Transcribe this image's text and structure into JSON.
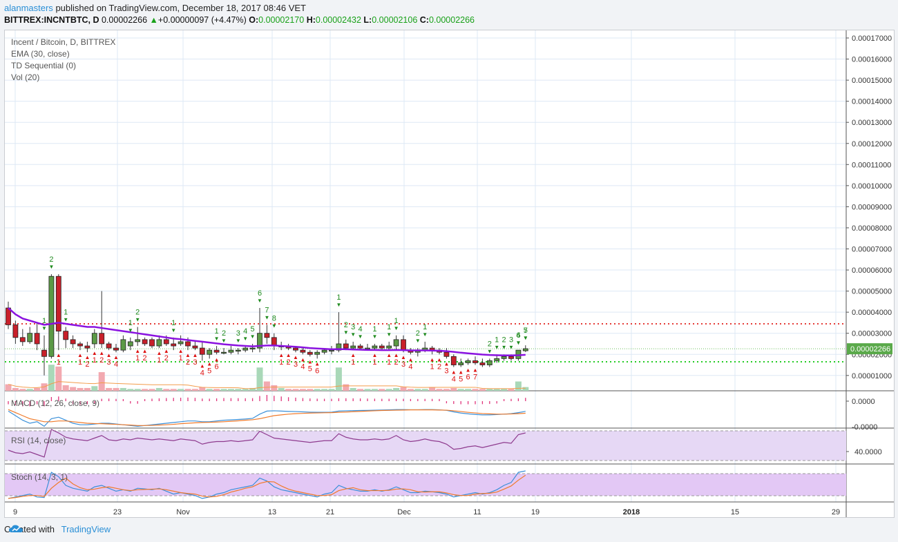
{
  "header": {
    "user": "alanmasters",
    "published": "published on TradingView.com, December 18, 2017 08:46 VET",
    "symbol": "BITTREX:INCNTBTC, D",
    "price": "0.00002266",
    "change": "+0.00000097 (+4.47%)",
    "o_label": "O:",
    "o": "0.00002170",
    "h_label": "H:",
    "h": "0.00002432",
    "l_label": "L:",
    "l": "0.00002106",
    "c_label": "C:",
    "c": "0.00002266"
  },
  "legend": {
    "title": "Incent / Bitcoin, D, BITTREX",
    "ema": "EMA (30, close)",
    "td": "TD Sequential (0)",
    "vol": "Vol (20)",
    "macd": "MACD (12, 26, close, 9)",
    "rsi": "RSI (14, close)",
    "stoch": "Stoch (14, 3, 1)"
  },
  "footer": {
    "created": "Created with",
    "brand": "TradingView"
  },
  "colors": {
    "up": "#3d7a2f",
    "down": "#c8202a",
    "ema": "#8a12e0",
    "green_line": "#22cc22",
    "red_line": "#e53935",
    "vol_up": "#a9d8b8",
    "vol_down": "#f2a9b0",
    "accent": "#2a8fd6"
  },
  "chart_data": [
    {
      "type": "candlestick",
      "title": "Incent / Bitcoin, D, BITTREX",
      "ylim": [
        0,
        0.00017
      ],
      "y_ticks": [
        "0.00017000",
        "0.00016000",
        "0.00015000",
        "0.00014000",
        "0.00013000",
        "0.00012000",
        "0.00011000",
        "0.00010000",
        "0.00009000",
        "0.00008000",
        "0.00007000",
        "0.00006000",
        "0.00005000",
        "0.00004000",
        "0.00003000",
        "0.00002000",
        "0.00001000"
      ],
      "x_ticks": [
        "9",
        "23",
        "Nov",
        "13",
        "21",
        "Dec",
        "11",
        "19",
        "2018",
        "15",
        "29"
      ],
      "last_price_label": "0.00002266",
      "resistance_green": 1.65e-05,
      "resistance_red": 3.45e-05,
      "support_green_dotted": 2.266e-05,
      "candles": [
        [
          4.2,
          4.5,
          3.2,
          3.4
        ],
        [
          3.4,
          3.6,
          2.5,
          2.8
        ],
        [
          2.8,
          3.2,
          2.4,
          2.6
        ],
        [
          2.6,
          3.3,
          2.5,
          3.0
        ],
        [
          3.0,
          3.5,
          2.2,
          2.5
        ],
        [
          2.2,
          2.9,
          1.0,
          1.9
        ],
        [
          1.9,
          5.8,
          1.8,
          5.7
        ],
        [
          5.7,
          5.8,
          2.2,
          3.1
        ],
        [
          3.1,
          3.3,
          2.3,
          2.7
        ],
        [
          2.7,
          2.9,
          2.3,
          2.5
        ],
        [
          2.5,
          2.6,
          2.2,
          2.4
        ],
        [
          2.4,
          2.6,
          2.1,
          2.3
        ],
        [
          2.5,
          3.2,
          2.3,
          3.0
        ],
        [
          3.0,
          5.0,
          2.3,
          2.5
        ],
        [
          2.5,
          2.6,
          2.2,
          2.3
        ],
        [
          2.3,
          2.5,
          2.1,
          2.2
        ],
        [
          2.2,
          2.9,
          2.1,
          2.7
        ],
        [
          2.4,
          2.8,
          2.2,
          2.6
        ],
        [
          2.6,
          3.3,
          2.4,
          2.7
        ],
        [
          2.7,
          2.8,
          2.4,
          2.5
        ],
        [
          2.7,
          2.8,
          2.3,
          2.4
        ],
        [
          2.4,
          2.9,
          2.3,
          2.7
        ],
        [
          2.7,
          2.9,
          2.4,
          2.5
        ],
        [
          2.5,
          2.8,
          2.2,
          2.4
        ],
        [
          2.5,
          2.9,
          2.4,
          2.6
        ],
        [
          2.6,
          2.8,
          2.2,
          2.4
        ],
        [
          2.4,
          2.6,
          2.2,
          2.3
        ],
        [
          2.3,
          2.6,
          1.7,
          2.0
        ],
        [
          2.0,
          2.3,
          1.8,
          2.2
        ],
        [
          2.2,
          2.4,
          2.0,
          2.1
        ],
        [
          2.1,
          2.3,
          2.0,
          2.1
        ],
        [
          2.1,
          2.4,
          2.0,
          2.2
        ],
        [
          2.2,
          2.3,
          2.0,
          2.2
        ],
        [
          2.2,
          2.4,
          2.1,
          2.3
        ],
        [
          2.3,
          2.5,
          2.1,
          2.3
        ],
        [
          2.3,
          4.2,
          2.1,
          3.0
        ],
        [
          3.0,
          3.4,
          2.5,
          2.8
        ],
        [
          2.8,
          3.0,
          2.2,
          2.4
        ],
        [
          2.4,
          2.6,
          2.2,
          2.4
        ],
        [
          2.4,
          2.5,
          2.2,
          2.3
        ],
        [
          2.3,
          2.4,
          2.1,
          2.2
        ],
        [
          2.2,
          2.3,
          2.0,
          2.1
        ],
        [
          2.1,
          2.2,
          1.9,
          2.0
        ],
        [
          2.0,
          2.2,
          1.8,
          2.1
        ],
        [
          2.1,
          2.3,
          2.0,
          2.2
        ],
        [
          2.2,
          2.4,
          2.0,
          2.2
        ],
        [
          2.2,
          4.0,
          2.1,
          2.5
        ],
        [
          2.5,
          2.7,
          2.2,
          2.3
        ],
        [
          2.3,
          2.6,
          2.2,
          2.4
        ],
        [
          2.4,
          2.5,
          2.2,
          2.3
        ],
        [
          2.3,
          2.5,
          2.2,
          2.3
        ],
        [
          2.3,
          2.5,
          2.2,
          2.4
        ],
        [
          2.4,
          2.5,
          2.2,
          2.3
        ],
        [
          2.3,
          2.6,
          2.2,
          2.4
        ],
        [
          2.4,
          2.9,
          2.2,
          2.7
        ],
        [
          2.7,
          2.9,
          2.1,
          2.2
        ],
        [
          2.2,
          2.3,
          2.0,
          2.1
        ],
        [
          2.1,
          2.3,
          1.9,
          2.2
        ],
        [
          2.2,
          2.6,
          2.1,
          2.3
        ],
        [
          2.3,
          2.4,
          2.0,
          2.2
        ],
        [
          2.2,
          2.3,
          2.0,
          2.1
        ],
        [
          2.1,
          2.3,
          1.8,
          1.9
        ],
        [
          1.9,
          2.0,
          1.4,
          1.5
        ],
        [
          1.5,
          1.8,
          1.4,
          1.6
        ],
        [
          1.6,
          1.8,
          1.5,
          1.7
        ],
        [
          1.7,
          1.9,
          1.5,
          1.6
        ],
        [
          1.6,
          1.8,
          1.4,
          1.5
        ],
        [
          1.5,
          1.8,
          1.4,
          1.7
        ],
        [
          1.7,
          2.0,
          1.6,
          1.8
        ],
        [
          1.8,
          2.0,
          1.7,
          1.9
        ],
        [
          1.9,
          2.0,
          1.7,
          1.8
        ],
        [
          1.8,
          2.2,
          1.7,
          2.2
        ],
        [
          2.17,
          2.43,
          2.11,
          2.27
        ]
      ],
      "ema": [
        4.2,
        3.9,
        3.7,
        3.6,
        3.5,
        3.4,
        3.45,
        3.5,
        3.45,
        3.4,
        3.35,
        3.3,
        3.3,
        3.25,
        3.2,
        3.15,
        3.1,
        3.05,
        3.0,
        2.95,
        2.9,
        2.85,
        2.8,
        2.75,
        2.72,
        2.68,
        2.64,
        2.6,
        2.56,
        2.52,
        2.48,
        2.45,
        2.42,
        2.4,
        2.38,
        2.4,
        2.42,
        2.42,
        2.4,
        2.38,
        2.36,
        2.33,
        2.3,
        2.28,
        2.26,
        2.24,
        2.25,
        2.24,
        2.23,
        2.22,
        2.21,
        2.21,
        2.2,
        2.2,
        2.21,
        2.2,
        2.19,
        2.19,
        2.19,
        2.18,
        2.17,
        2.15,
        2.12,
        2.08,
        2.05,
        2.02,
        1.99,
        1.97,
        1.96,
        1.95,
        1.95,
        1.96,
        1.98
      ],
      "volume": [
        7,
        3,
        2,
        2,
        3,
        8,
        28,
        26,
        6,
        4,
        3,
        3,
        5,
        20,
        3,
        3,
        3,
        2,
        2,
        2,
        2,
        3,
        2,
        2,
        2,
        2,
        2,
        4,
        2,
        2,
        2,
        2,
        2,
        2,
        3,
        25,
        10,
        6,
        3,
        2,
        2,
        2,
        2,
        2,
        2,
        2,
        25,
        7,
        3,
        2,
        2,
        2,
        2,
        2,
        3,
        4,
        2,
        2,
        2,
        4,
        2,
        2,
        3,
        2,
        2,
        2,
        2,
        2,
        2,
        2,
        2,
        10,
        4
      ],
      "td_labels_up": [
        "1",
        "2",
        "1",
        "1",
        "2",
        "1",
        "1",
        "2",
        "3",
        "4",
        "5",
        "6",
        "7",
        "8",
        "1",
        "2",
        "3",
        "4",
        "1",
        "1",
        "1",
        "2",
        "1",
        "2",
        "1",
        "2",
        "3",
        "4",
        "5",
        "6",
        "7"
      ],
      "td_labels_down": [
        "1",
        "1",
        "2",
        "1",
        "2",
        "3",
        "4",
        "1",
        "2",
        "1",
        "2",
        "1",
        "2",
        "3",
        "4",
        "5",
        "6",
        "1",
        "2",
        "3",
        "4",
        "5",
        "6",
        "1",
        "1",
        "1",
        "2",
        "3",
        "4",
        "1",
        "2",
        "3",
        "4",
        "5",
        "6",
        "7"
      ]
    },
    {
      "type": "line",
      "title": "MACD (12, 26, close, 9)",
      "y_ticks": [
        "0.0000",
        "-0.0000"
      ],
      "series": [
        {
          "name": "MACD",
          "values": [
            -0.2,
            -0.5,
            -0.8,
            -1.0,
            -0.9,
            -1.2,
            -0.7,
            -0.6,
            -0.8,
            -1.0,
            -1.1,
            -1.1,
            -1.05,
            -1.0,
            -1.0,
            -1.05,
            -1.1,
            -1.15,
            -1.2,
            -1.15,
            -1.1,
            -1.05,
            -1.0,
            -0.95,
            -0.9,
            -0.85,
            -0.85,
            -0.9,
            -0.9,
            -0.85,
            -0.8,
            -0.78,
            -0.75,
            -0.72,
            -0.68,
            -0.4,
            -0.2,
            -0.18,
            -0.2,
            -0.22,
            -0.23,
            -0.25,
            -0.27,
            -0.28,
            -0.28,
            -0.27,
            -0.2,
            -0.18,
            -0.17,
            -0.16,
            -0.15,
            -0.14,
            -0.13,
            -0.12,
            -0.1,
            -0.1,
            -0.11,
            -0.11,
            -0.1,
            -0.1,
            -0.12,
            -0.15,
            -0.25,
            -0.33,
            -0.38,
            -0.42,
            -0.45,
            -0.45,
            -0.43,
            -0.4,
            -0.37,
            -0.3,
            -0.22
          ]
        },
        {
          "name": "Signal",
          "values": [
            -0.1,
            -0.3,
            -0.5,
            -0.7,
            -0.8,
            -0.9,
            -0.9,
            -0.85,
            -0.85,
            -0.9,
            -0.95,
            -1.0,
            -1.02,
            -1.03,
            -1.05,
            -1.07,
            -1.1,
            -1.12,
            -1.15,
            -1.15,
            -1.14,
            -1.12,
            -1.1,
            -1.07,
            -1.03,
            -1.0,
            -0.97,
            -0.95,
            -0.94,
            -0.92,
            -0.9,
            -0.87,
            -0.84,
            -0.8,
            -0.77,
            -0.7,
            -0.6,
            -0.5,
            -0.45,
            -0.4,
            -0.37,
            -0.35,
            -0.33,
            -0.32,
            -0.31,
            -0.3,
            -0.28,
            -0.26,
            -0.24,
            -0.22,
            -0.2,
            -0.18,
            -0.16,
            -0.15,
            -0.14,
            -0.13,
            -0.12,
            -0.12,
            -0.12,
            -0.12,
            -0.13,
            -0.14,
            -0.18,
            -0.23,
            -0.28,
            -0.32,
            -0.36,
            -0.38,
            -0.4,
            -0.4,
            -0.39,
            -0.37,
            -0.34
          ]
        }
      ]
    },
    {
      "type": "line",
      "title": "RSI (14, close)",
      "y_ticks": [
        "40.0000"
      ],
      "series": [
        {
          "name": "RSI",
          "values": [
            38,
            35,
            34,
            36,
            33,
            30,
            62,
            58,
            53,
            51,
            50,
            49,
            52,
            55,
            50,
            49,
            51,
            50,
            52,
            51,
            50,
            51,
            50,
            49,
            51,
            50,
            49,
            45,
            47,
            48,
            48,
            49,
            48,
            49,
            50,
            60,
            56,
            52,
            51,
            50,
            49,
            48,
            47,
            48,
            49,
            49,
            57,
            53,
            51,
            50,
            50,
            51,
            50,
            51,
            55,
            50,
            48,
            49,
            51,
            49,
            48,
            45,
            39,
            40,
            42,
            43,
            41,
            43,
            45,
            47,
            46,
            56,
            58
          ]
        }
      ]
    },
    {
      "type": "line",
      "title": "Stoch (14, 3, 1)",
      "series": [
        {
          "name": "%K",
          "values": [
            5,
            10,
            15,
            20,
            10,
            8,
            95,
            80,
            50,
            40,
            35,
            30,
            45,
            50,
            40,
            30,
            35,
            30,
            40,
            38,
            35,
            40,
            30,
            20,
            25,
            20,
            15,
            5,
            10,
            20,
            25,
            35,
            40,
            45,
            50,
            75,
            65,
            45,
            35,
            30,
            25,
            20,
            15,
            10,
            20,
            25,
            50,
            40,
            35,
            30,
            30,
            35,
            30,
            35,
            45,
            35,
            25,
            25,
            30,
            28,
            25,
            20,
            10,
            15,
            20,
            25,
            20,
            25,
            35,
            50,
            60,
            95,
            100
          ]
        },
        {
          "name": "%D",
          "values": [
            5,
            8,
            12,
            15,
            15,
            12,
            40,
            60,
            75,
            55,
            42,
            35,
            37,
            42,
            45,
            40,
            35,
            32,
            35,
            36,
            37,
            38,
            35,
            30,
            25,
            22,
            20,
            13,
            10,
            12,
            18,
            27,
            33,
            40,
            45,
            57,
            63,
            62,
            48,
            37,
            30,
            25,
            20,
            15,
            15,
            18,
            32,
            38,
            42,
            35,
            32,
            32,
            32,
            33,
            37,
            38,
            35,
            28,
            27,
            28,
            28,
            24,
            18,
            15,
            15,
            20,
            22,
            23,
            27,
            37,
            48,
            68,
            85
          ]
        }
      ]
    }
  ]
}
